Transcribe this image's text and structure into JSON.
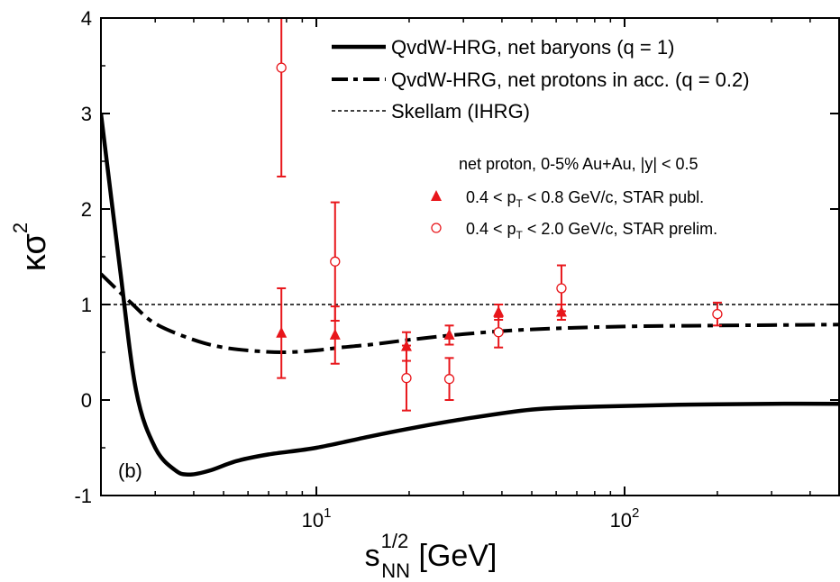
{
  "chart_data": {
    "type": "line",
    "panel_label": "(b)",
    "x_scale": "log",
    "xlim": [
      2.0,
      500
    ],
    "ylim": [
      -1,
      4
    ],
    "xlabel": {
      "base": "s",
      "sup": "1/2",
      "sub": "NN",
      "rest": " [GeV]"
    },
    "ylabel": {
      "base": "κσ",
      "sup": "2"
    },
    "x_ticks": [
      {
        "value": 10,
        "base": "10",
        "exp": "1"
      },
      {
        "value": 100,
        "base": "10",
        "exp": "2"
      }
    ],
    "y_ticks": [
      -1,
      0,
      1,
      2,
      3,
      4
    ],
    "legend_lines": [
      {
        "label": "QvdW-HRG, net baryons (q = 1)",
        "style": "solid"
      },
      {
        "label": "QvdW-HRG, net protons in acc. (q = 0.2)",
        "style": "dashdot"
      },
      {
        "label": "Skellam (IHRG)",
        "style": "dotted"
      }
    ],
    "legend_title": "net proton, 0-5% Au+Au, |y| < 0.5",
    "legend_markers": [
      {
        "pre": "0.4 < p",
        "sub": "T",
        "post": " < 0.8 GeV/c, STAR publ.",
        "marker": "triangle"
      },
      {
        "pre": "0.4 < p",
        "sub": "T",
        "post": " < 2.0 GeV/c, STAR prelim.",
        "marker": "circle"
      }
    ],
    "series": [
      {
        "name": "QvdW-HRG, net baryons (q = 1)",
        "style": "solid",
        "x": [
          2.0,
          2.3,
          2.6,
          3.0,
          3.5,
          3.9,
          4.5,
          5.5,
          7.0,
          10,
          15,
          20,
          30,
          50,
          80,
          150,
          300,
          500
        ],
        "y": [
          3.0,
          1.4,
          0.1,
          -0.5,
          -0.74,
          -0.78,
          -0.74,
          -0.64,
          -0.57,
          -0.5,
          -0.38,
          -0.3,
          -0.2,
          -0.1,
          -0.07,
          -0.05,
          -0.04,
          -0.04
        ]
      },
      {
        "name": "QvdW-HRG, net protons in acc. (q = 0.2)",
        "style": "dashdot",
        "x": [
          2.0,
          2.5,
          3.0,
          4.0,
          5.0,
          6.5,
          8.0,
          10,
          12,
          15,
          20,
          30,
          50,
          100,
          200,
          500
        ],
        "y": [
          1.32,
          1.02,
          0.8,
          0.63,
          0.55,
          0.51,
          0.5,
          0.52,
          0.55,
          0.58,
          0.63,
          0.69,
          0.74,
          0.77,
          0.78,
          0.79
        ]
      },
      {
        "name": "Skellam (IHRG)",
        "style": "dotted",
        "x": [
          2.0,
          500
        ],
        "y": [
          1.0,
          1.0
        ]
      },
      {
        "name": "0.4 < pT < 0.8 GeV/c, STAR publ.",
        "marker": "triangle",
        "x": [
          7.7,
          11.5,
          19.6,
          27,
          39,
          62.4
        ],
        "y": [
          0.7,
          0.68,
          0.56,
          0.68,
          0.92,
          0.92
        ],
        "err": [
          0.47,
          0.3,
          0.15,
          0.1,
          0.08,
          0.08
        ]
      },
      {
        "name": "0.4 < pT < 2.0 GeV/c, STAR prelim.",
        "marker": "circle",
        "x": [
          7.7,
          11.5,
          19.6,
          27,
          39,
          62.4,
          200
        ],
        "y": [
          3.48,
          1.45,
          0.23,
          0.22,
          0.71,
          1.17,
          0.9
        ],
        "err": [
          1.14,
          0.62,
          0.34,
          0.22,
          0.16,
          0.24,
          0.12
        ]
      }
    ]
  }
}
